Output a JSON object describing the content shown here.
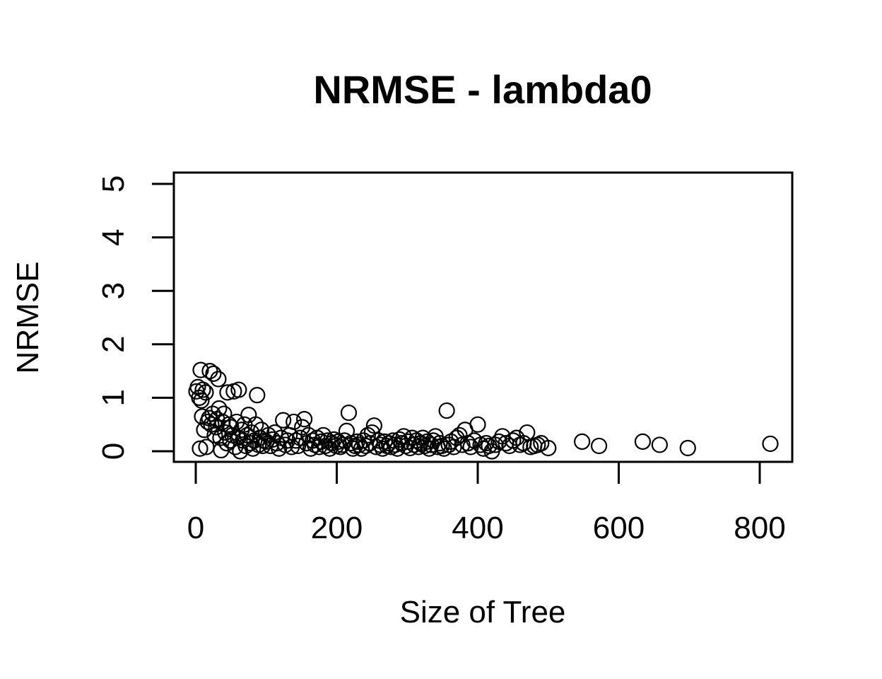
{
  "chart_data": {
    "type": "scatter",
    "title": "NRMSE - lambda0",
    "xlabel": "Size of Tree",
    "ylabel": "NRMSE",
    "xlim": [
      -20,
      850
    ],
    "ylim": [
      -0.2,
      5.2
    ],
    "xticks": [
      0,
      200,
      400,
      600,
      800
    ],
    "yticks": [
      0,
      1,
      2,
      3,
      4,
      5
    ],
    "marker": "open-circle",
    "grid": false,
    "legend": "none",
    "series": [
      {
        "points": [
          [
            1,
            1.12
          ],
          [
            3,
            1.2
          ],
          [
            5,
            1.0
          ],
          [
            6,
            0.05
          ],
          [
            7,
            1.52
          ],
          [
            8,
            0.95
          ],
          [
            9,
            0.65
          ],
          [
            10,
            1.15
          ],
          [
            12,
            0.4
          ],
          [
            14,
            1.1
          ],
          [
            15,
            0.08
          ],
          [
            17,
            0.55
          ],
          [
            19,
            0.62
          ],
          [
            20,
            1.5
          ],
          [
            22,
            0.5
          ],
          [
            24,
            0.7
          ],
          [
            25,
            1.45
          ],
          [
            27,
            0.3
          ],
          [
            29,
            0.45
          ],
          [
            30,
            0.6
          ],
          [
            32,
            1.35
          ],
          [
            33,
            0.8
          ],
          [
            35,
            0.25
          ],
          [
            36,
            0.02
          ],
          [
            38,
            0.55
          ],
          [
            40,
            0.7
          ],
          [
            42,
            0.35
          ],
          [
            44,
            0.15
          ],
          [
            45,
            1.1
          ],
          [
            47,
            0.5
          ],
          [
            49,
            0.2
          ],
          [
            50,
            0.45
          ],
          [
            52,
            0.3
          ],
          [
            54,
            1.12
          ],
          [
            56,
            0.08
          ],
          [
            58,
            0.55
          ],
          [
            60,
            0.25
          ],
          [
            61,
            1.15
          ],
          [
            63,
            0.0
          ],
          [
            65,
            0.4
          ],
          [
            67,
            0.2
          ],
          [
            69,
            0.5
          ],
          [
            71,
            0.1
          ],
          [
            73,
            0.3
          ],
          [
            75,
            0.68
          ],
          [
            77,
            0.15
          ],
          [
            79,
            0.35
          ],
          [
            81,
            0.05
          ],
          [
            83,
            0.2
          ],
          [
            85,
            0.5
          ],
          [
            87,
            1.05
          ],
          [
            89,
            0.12
          ],
          [
            91,
            0.25
          ],
          [
            93,
            0.4
          ],
          [
            95,
            0.1
          ],
          [
            97,
            0.2
          ],
          [
            100,
            0.18
          ],
          [
            103,
            0.3
          ],
          [
            106,
            0.1
          ],
          [
            109,
            0.22
          ],
          [
            112,
            0.35
          ],
          [
            115,
            0.15
          ],
          [
            118,
            0.05
          ],
          [
            121,
            0.25
          ],
          [
            124,
            0.58
          ],
          [
            127,
            0.12
          ],
          [
            130,
            0.2
          ],
          [
            133,
            0.3
          ],
          [
            136,
            0.08
          ],
          [
            139,
            0.55
          ],
          [
            142,
            0.2
          ],
          [
            145,
            0.1
          ],
          [
            148,
            0.25
          ],
          [
            151,
            0.45
          ],
          [
            154,
            0.6
          ],
          [
            157,
            0.15
          ],
          [
            160,
            0.3
          ],
          [
            163,
            0.05
          ],
          [
            166,
            0.2
          ],
          [
            169,
            0.12
          ],
          [
            172,
            0.25
          ],
          [
            175,
            0.08
          ],
          [
            178,
            0.18
          ],
          [
            181,
            0.3
          ],
          [
            184,
            0.1
          ],
          [
            187,
            0.2
          ],
          [
            190,
            0.05
          ],
          [
            193,
            0.15
          ],
          [
            196,
            0.22
          ],
          [
            199,
            0.1
          ],
          [
            202,
            0.18
          ],
          [
            205,
            0.08
          ],
          [
            208,
            0.12
          ],
          [
            211,
            0.2
          ],
          [
            214,
            0.38
          ],
          [
            217,
            0.72
          ],
          [
            220,
            0.15
          ],
          [
            223,
            0.05
          ],
          [
            226,
            0.1
          ],
          [
            229,
            0.18
          ],
          [
            232,
            0.12
          ],
          [
            235,
            0.05
          ],
          [
            238,
            0.2
          ],
          [
            241,
            0.1
          ],
          [
            244,
            0.3
          ],
          [
            247,
            0.15
          ],
          [
            250,
            0.35
          ],
          [
            253,
            0.48
          ],
          [
            256,
            0.08
          ],
          [
            259,
            0.2
          ],
          [
            262,
            0.12
          ],
          [
            265,
            0.05
          ],
          [
            268,
            0.18
          ],
          [
            271,
            0.1
          ],
          [
            274,
            0.15
          ],
          [
            277,
            0.08
          ],
          [
            280,
            0.2
          ],
          [
            283,
            0.12
          ],
          [
            286,
            0.05
          ],
          [
            289,
            0.22
          ],
          [
            292,
            0.15
          ],
          [
            295,
            0.28
          ],
          [
            298,
            0.1
          ],
          [
            301,
            0.18
          ],
          [
            304,
            0.06
          ],
          [
            307,
            0.25
          ],
          [
            310,
            0.12
          ],
          [
            313,
            0.2
          ],
          [
            316,
            0.08
          ],
          [
            319,
            0.15
          ],
          [
            322,
            0.25
          ],
          [
            325,
            0.1
          ],
          [
            328,
            0.18
          ],
          [
            331,
            0.05
          ],
          [
            334,
            0.12
          ],
          [
            337,
            0.2
          ],
          [
            340,
            0.28
          ],
          [
            343,
            0.08
          ],
          [
            346,
            0.15
          ],
          [
            349,
            0.1
          ],
          [
            352,
            0.05
          ],
          [
            356,
            0.76
          ],
          [
            359,
            0.12
          ],
          [
            362,
            0.18
          ],
          [
            366,
            0.08
          ],
          [
            370,
            0.25
          ],
          [
            374,
            0.3
          ],
          [
            378,
            0.12
          ],
          [
            382,
            0.4
          ],
          [
            386,
            0.15
          ],
          [
            390,
            0.08
          ],
          [
            395,
            0.2
          ],
          [
            400,
            0.5
          ],
          [
            404,
            0.12
          ],
          [
            408,
            0.05
          ],
          [
            412,
            0.15
          ],
          [
            416,
            0.1
          ],
          [
            420,
            0.0
          ],
          [
            425,
            0.12
          ],
          [
            430,
            0.18
          ],
          [
            435,
            0.28
          ],
          [
            440,
            0.15
          ],
          [
            445,
            0.1
          ],
          [
            450,
            0.2
          ],
          [
            455,
            0.25
          ],
          [
            460,
            0.12
          ],
          [
            465,
            0.15
          ],
          [
            470,
            0.35
          ],
          [
            475,
            0.08
          ],
          [
            480,
            0.1
          ],
          [
            485,
            0.12
          ],
          [
            490,
            0.15
          ],
          [
            500,
            0.06
          ],
          [
            548,
            0.18
          ],
          [
            572,
            0.1
          ],
          [
            634,
            0.18
          ],
          [
            658,
            0.12
          ],
          [
            698,
            0.06
          ],
          [
            815,
            0.14
          ]
        ]
      }
    ]
  }
}
